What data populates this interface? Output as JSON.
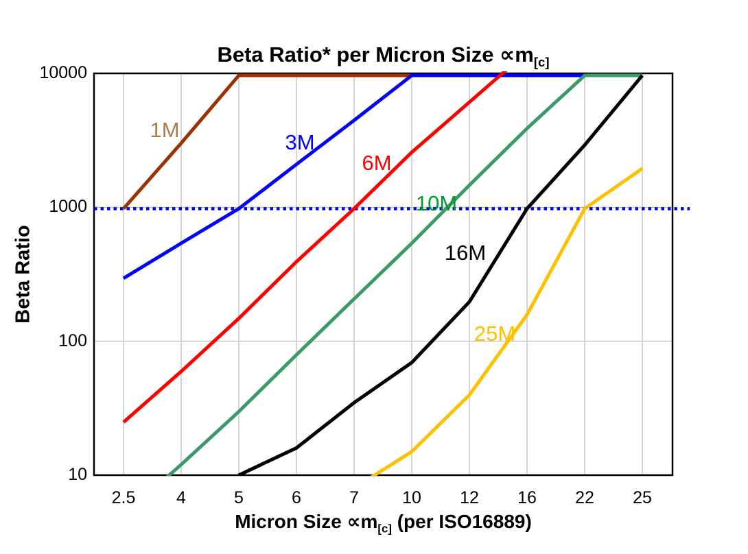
{
  "title": {
    "main": "Beta Ratio* per Micron Size ",
    "symbol": "∝m",
    "subscript": "[c]"
  },
  "y_axis": {
    "title": "Beta Ratio",
    "ticks": [
      "10",
      "100",
      "1000",
      "10000"
    ]
  },
  "x_axis": {
    "title_pre": "Micron Size ",
    "title_symbol": "∝m",
    "title_sub": "[c]",
    "title_post": " (per ISO16889)"
  },
  "chart_data": {
    "type": "line",
    "title": "Beta Ratio* per Micron Size ∝m[c]",
    "xlabel": "Micron Size ∝m[c] (per ISO16889)",
    "ylabel": "Beta Ratio",
    "x_categories": [
      2.5,
      4,
      5,
      6,
      7,
      10,
      12,
      16,
      22,
      25
    ],
    "x_tick_labels": [
      "2.5",
      "4",
      "5",
      "6",
      "7",
      "10",
      "12",
      "16",
      "22",
      "25"
    ],
    "y_scale": "log",
    "ylim": [
      10,
      10000
    ],
    "y_ticks": [
      10,
      100,
      1000,
      10000
    ],
    "grid": true,
    "gridline_color": "#c8c8c8",
    "border_color": "#000000",
    "reference_line": {
      "y": 1000,
      "color": "#0000fe",
      "style": "dotted"
    },
    "series": [
      {
        "name": "1M",
        "color": "#993305",
        "label_color": "#ab7b4d",
        "label_pos": [
          240,
          190
        ],
        "points": [
          [
            2.5,
            1000
          ],
          [
            4,
            3100
          ],
          [
            5,
            10000
          ],
          [
            10,
            10000
          ]
        ]
      },
      {
        "name": "3M",
        "color": "#0000fe",
        "label_color": "#0000fe",
        "label_pos": [
          437,
          208
        ],
        "points": [
          [
            2.5,
            300
          ],
          [
            4,
            550
          ],
          [
            5,
            1000
          ],
          [
            6,
            2150
          ],
          [
            7,
            4600
          ],
          [
            10,
            10000
          ],
          [
            22,
            10000
          ]
        ]
      },
      {
        "name": "6M",
        "color": "#fe0000",
        "label_color": "#fe0000",
        "label_pos": [
          549,
          238
        ],
        "points": [
          [
            2.5,
            25
          ],
          [
            4,
            60
          ],
          [
            5,
            150
          ],
          [
            6,
            400
          ],
          [
            7,
            1000
          ],
          [
            10,
            2650
          ],
          [
            12,
            6300
          ],
          [
            16,
            15000
          ]
        ]
      },
      {
        "name": "10M",
        "color": "#3a9a68",
        "label_color": "#009a33",
        "label_pos": [
          636,
          297
        ],
        "points": [
          [
            2.5,
            5
          ],
          [
            4,
            12
          ],
          [
            5,
            30
          ],
          [
            6,
            80
          ],
          [
            7,
            210
          ],
          [
            10,
            550
          ],
          [
            12,
            1500
          ],
          [
            16,
            4000
          ],
          [
            22,
            10000
          ],
          [
            25,
            10000
          ]
        ]
      },
      {
        "name": "16M",
        "color": "#000000",
        "label_color": "#000000",
        "label_pos": [
          678,
          369
        ],
        "points": [
          [
            5,
            10
          ],
          [
            6,
            16
          ],
          [
            7,
            35
          ],
          [
            10,
            70
          ],
          [
            12,
            200
          ],
          [
            16,
            1000
          ],
          [
            22,
            3000
          ],
          [
            25,
            10000
          ]
        ]
      },
      {
        "name": "25M",
        "color": "#fec001",
        "label_color": "#fec001",
        "label_pos": [
          721,
          487
        ],
        "points": [
          [
            7,
            8
          ],
          [
            10,
            15
          ],
          [
            12,
            40
          ],
          [
            16,
            160
          ],
          [
            22,
            1000
          ],
          [
            25,
            2000
          ]
        ]
      }
    ]
  }
}
